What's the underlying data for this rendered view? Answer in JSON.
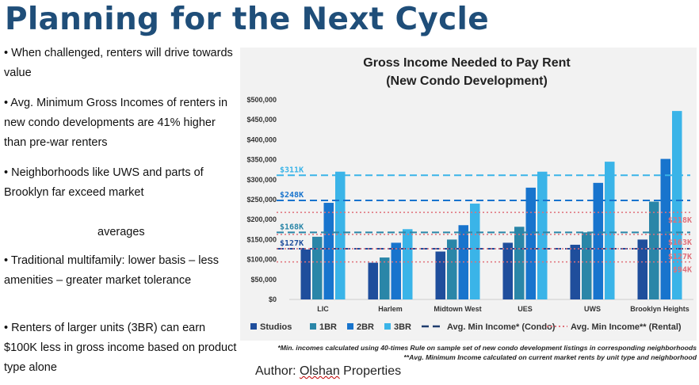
{
  "slide": {
    "title": "Planning for the Next Cycle",
    "bullets": [
      "• When challenged, renters will drive towards value",
      "• Avg.  Minimum Gross Incomes of renters in new condo developments are 41% higher than pre-war renters",
      "• Neighborhoods like UWS and parts   of Brooklyn far exceed market",
      "averages",
      "• Traditional multifamily: lower basis – less amenities – greater market tolerance",
      "• Renters of larger units (3BR) can earn $100K less in gross income based on product type alone"
    ],
    "footnote_1": "*Min. incomes calculated using 40-times Rule on sample set of new condo development listings in corresponding neighborhoods",
    "footnote_2": "**Avg. Minimum Income calculated on current market rents by unit type and neighborhood",
    "author_label": "Author: ",
    "author_name": "Olshan",
    "author_rest": " Properties"
  },
  "chart_data": {
    "type": "bar",
    "title": "Gross Income Needed to Pay Rent",
    "subtitle": "(New Condo Development)",
    "categories": [
      "LIC",
      "Harlem",
      "Midtown West",
      "UES",
      "UWS",
      "Brooklyn Heights"
    ],
    "series": [
      {
        "name": "Studios",
        "color": "#1f4e9c",
        "values": [
          125000,
          92000,
          120000,
          142000,
          137000,
          150000
        ]
      },
      {
        "name": "1BR",
        "color": "#2a86a8",
        "values": [
          157000,
          105000,
          150000,
          182000,
          168000,
          245000
        ]
      },
      {
        "name": "2BR",
        "color": "#1874cd",
        "values": [
          242000,
          142000,
          186000,
          280000,
          292000,
          352000
        ]
      },
      {
        "name": "3BR",
        "color": "#3ab4e8",
        "values": [
          320000,
          176000,
          240000,
          320000,
          345000,
          472000
        ]
      }
    ],
    "ylim": [
      0,
      500000
    ],
    "yticks": [
      "$0",
      "$50,000",
      "$100,000",
      "$150,000",
      "$200,000",
      "$250,000",
      "$300,000",
      "$350,000",
      "$400,000",
      "$450,000",
      "$500,000"
    ],
    "grid": false,
    "reference_lines": [
      {
        "group": "condo",
        "value": 311000,
        "label": "$311K",
        "color": "#3ab4e8"
      },
      {
        "group": "condo",
        "value": 248000,
        "label": "$248K",
        "color": "#1874cd"
      },
      {
        "group": "condo",
        "value": 168000,
        "label": "$168K",
        "color": "#2a86a8"
      },
      {
        "group": "condo",
        "value": 127000,
        "label": "$127K",
        "color": "#1f4e9c"
      },
      {
        "group": "rental",
        "value": 218000,
        "label": "$218K",
        "color": "#e0707a"
      },
      {
        "group": "rental",
        "value": 163000,
        "label": "$163K",
        "color": "#e0707a"
      },
      {
        "group": "rental",
        "value": 127000,
        "label": "$127K",
        "color": "#e0707a"
      },
      {
        "group": "rental",
        "value": 94000,
        "label": "$94K",
        "color": "#e0707a"
      }
    ],
    "legend": {
      "position": "bottom",
      "items": [
        "Studios",
        "1BR",
        "2BR",
        "3BR"
      ],
      "condo_label": "Avg. Min Income* (Condo)",
      "rental_label": "Avg. Min Income** (Rental)",
      "condo_color": "#1f3d6e",
      "rental_color": "#e0707a"
    }
  }
}
